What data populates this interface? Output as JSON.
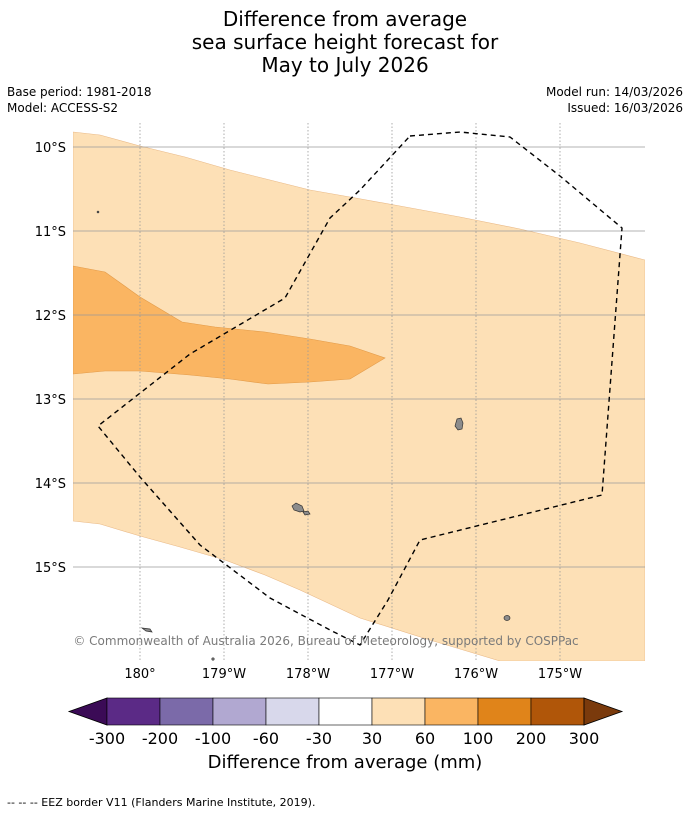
{
  "title": {
    "line1": "Difference from average",
    "line2": "sea surface height forecast for",
    "line3": "May to July 2026"
  },
  "meta": {
    "base_period": "Base period: 1981-2018",
    "model": "Model: ACCESS-S2",
    "model_run": "Model run: 14/03/2026",
    "issued": "Issued: 16/03/2026"
  },
  "map": {
    "lat_labels": [
      "10°S",
      "11°S",
      "12°S",
      "13°S",
      "14°S",
      "15°S"
    ],
    "lon_labels": [
      "180°",
      "179°W",
      "178°W",
      "177°W",
      "176°W",
      "175°W"
    ],
    "copyright": "© Commonwealth of Australia 2026, Bureau of Meteorology, supported by COSPPac",
    "colors": {
      "band_30_60": "#fde0b6",
      "band_60_100": "#fab562",
      "land": "#8c8c8c",
      "grid": "#9a9a9a"
    }
  },
  "colorbar": {
    "title": "Difference from average (mm)",
    "ticks": [
      "-300",
      "-200",
      "-100",
      "-60",
      "-30",
      "30",
      "60",
      "100",
      "200",
      "300"
    ],
    "colors": [
      "#5b2a86",
      "#7b6aa9",
      "#b1a8d1",
      "#d8d8eb",
      "#ffffff",
      "#fde0b6",
      "#fab562",
      "#e0841a",
      "#b05609"
    ],
    "under_color": "#3b0b56",
    "over_color": "#7a3a0c"
  },
  "footer": "--  --  -- EEZ border V11 (Flanders Marine Institute, 2019)."
}
